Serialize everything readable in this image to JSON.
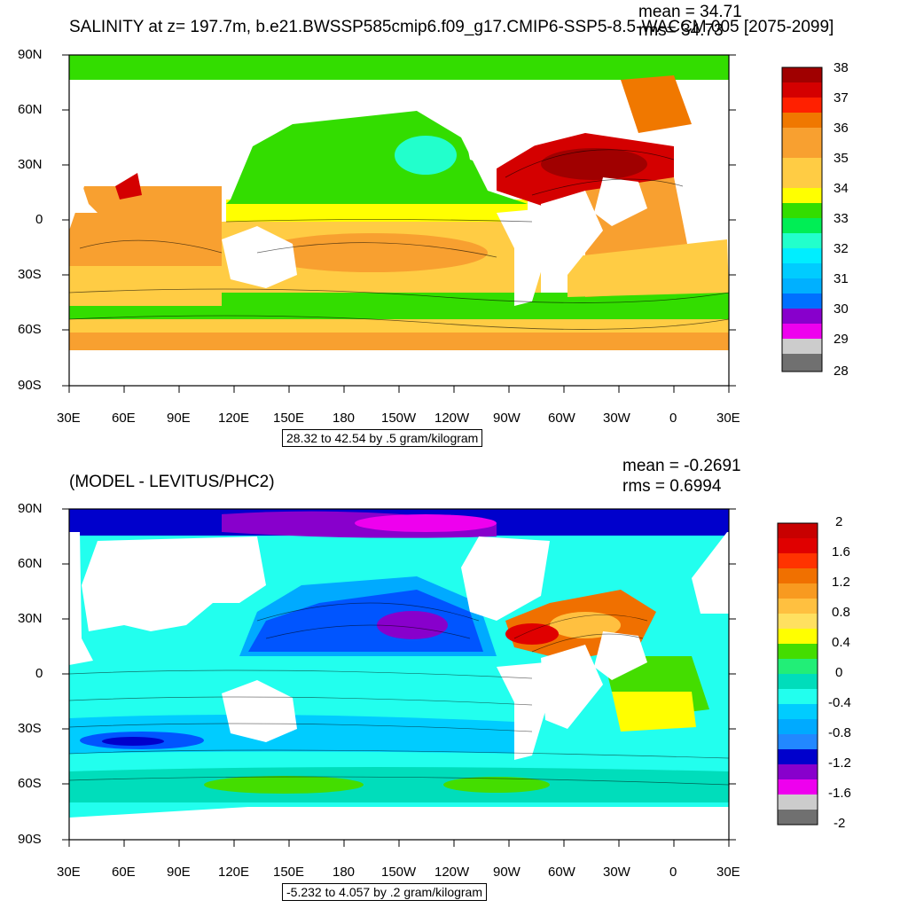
{
  "top": {
    "title": "SALINITY at z= 197.7m, b.e21.BWSSP585cmip6.f09_g17.CMIP6-SSP5-8.5-WACCM.005 [2075-2099]",
    "mean": "mean = 34.71",
    "rms": "rms= 34.73",
    "info": "28.32 to 42.54 by .5 gram/kilogram",
    "colorbar_labels": [
      "38",
      "37",
      "36",
      "35",
      "34",
      "33",
      "32",
      "31",
      "30",
      "29",
      "28"
    ],
    "colorbar_colors": [
      "#a00000",
      "#d40000",
      "#ff2000",
      "#f07800",
      "#f8a030",
      "#ffcc44",
      "#ffff00",
      "#33dd00",
      "#00ee55",
      "#22ffcc",
      "#00eeff",
      "#00b0ff",
      "#0070ff",
      "#0000ee",
      "#8800cc",
      "#ee00ee",
      "#cccccc",
      "#707070"
    ]
  },
  "bottom": {
    "title": "(MODEL - LEVITUS/PHC2)",
    "mean": "mean = -0.2691",
    "rms": "rms = 0.6994",
    "info": "-5.232 to 4.057 by .2 gram/kilogram",
    "colorbar_labels": [
      "2",
      "1.6",
      "1.2",
      "0.8",
      "0.4",
      "0",
      "-0.4",
      "-0.8",
      "-1.2",
      "-1.6",
      "-2"
    ],
    "colorbar_colors": [
      "#c80000",
      "#e00000",
      "#ff3300",
      "#f07000",
      "#f89a20",
      "#ffc040",
      "#ffe060",
      "#ffff00",
      "#44dd00",
      "#22ee77",
      "#00ddbb",
      "#22ffee",
      "#00ccff",
      "#00aaff",
      "#2288ff",
      "#0055ff",
      "#0000cc",
      "#8800cc",
      "#ee00ee",
      "#cccccc",
      "#707070"
    ]
  },
  "axes": {
    "lat_labels": [
      "90N",
      "60N",
      "30N",
      "0",
      "30S",
      "60S",
      "90S"
    ],
    "lon_labels": [
      "30E",
      "60E",
      "90E",
      "120E",
      "150E",
      "180",
      "150W",
      "120W",
      "90W",
      "60W",
      "30W",
      "0",
      "30E"
    ]
  },
  "palette": {
    "land": "#ffffff",
    "frame": "#000000"
  }
}
